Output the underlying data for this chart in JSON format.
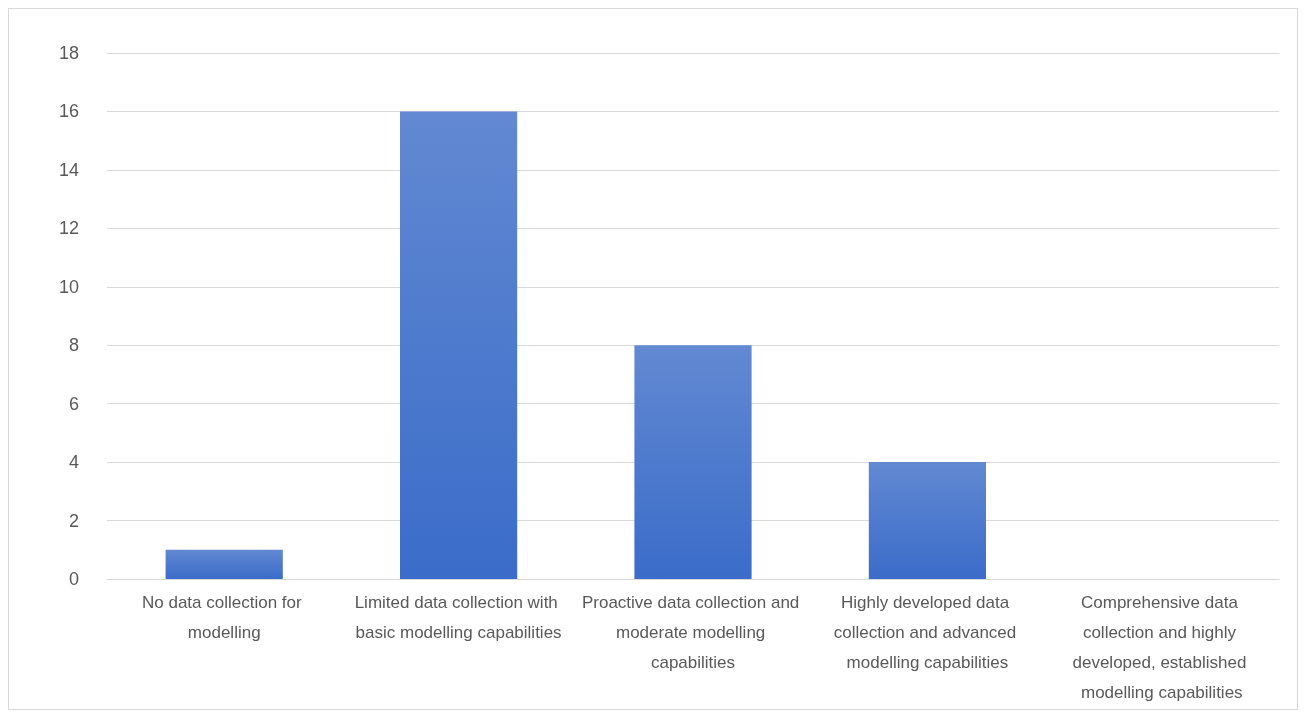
{
  "chart_data": {
    "type": "bar",
    "categories": [
      "No data collection for modelling",
      "Limited data collection with basic modelling capabilities",
      "Proactive data collection and moderate modelling capabilities",
      "Highly developed data collection and advanced modelling capabilities",
      "Comprehensive data collection and highly developed, established modelling capabilities"
    ],
    "values": [
      1,
      16,
      8,
      4,
      0
    ],
    "color": "#3a6cc9",
    "ylim": [
      0,
      18
    ],
    "yticks": [
      0,
      2,
      4,
      6,
      8,
      10,
      12,
      14,
      16,
      18
    ],
    "grid": "y"
  }
}
